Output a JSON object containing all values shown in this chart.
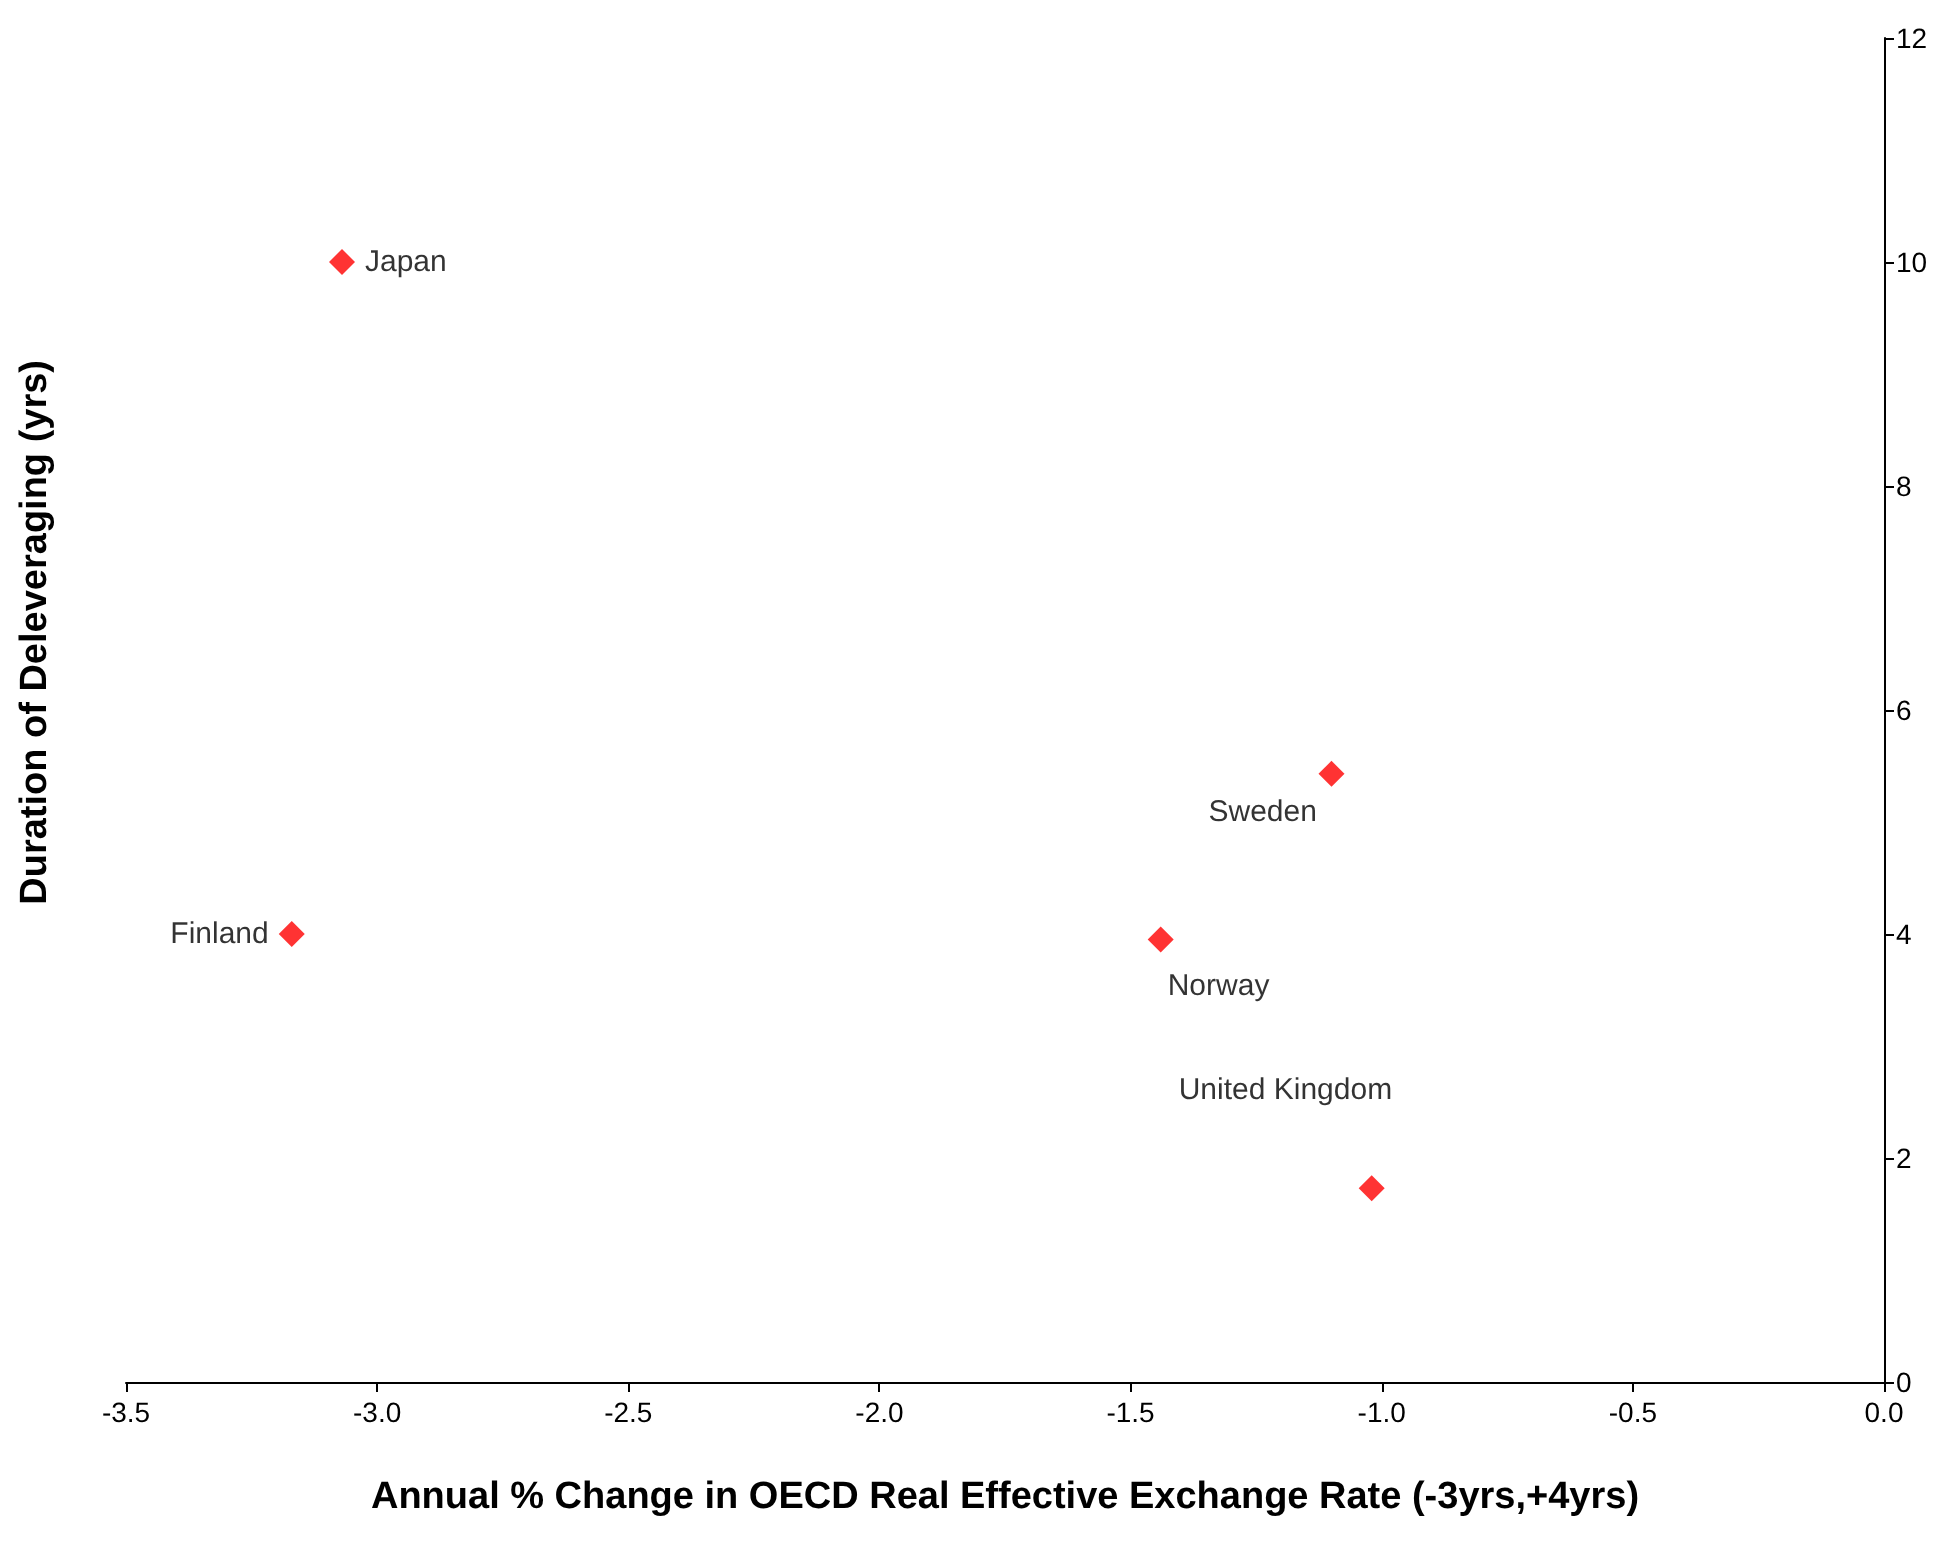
{
  "chart_data": {
    "type": "scatter",
    "xlabel": "Annual % Change in OECD Real Effective Exchange Rate (-3yrs,+4yrs)",
    "ylabel": "Duration of Deleveraging (yrs)",
    "series": [
      {
        "name": "Japan",
        "color": "#ff0000",
        "x": [
          -3.07
        ],
        "values": [
          10.0
        ]
      },
      {
        "name": "Finland",
        "color": "#ff0000",
        "x": [
          -3.17
        ],
        "values": [
          4.0
        ]
      },
      {
        "name": "Norway",
        "color": "#ff0000",
        "x": [
          -1.44
        ],
        "values": [
          3.95
        ]
      },
      {
        "name": "Sweden",
        "color": "#ff0000",
        "x": [
          -1.1
        ],
        "values": [
          5.43
        ]
      },
      {
        "name": "United Kingdom",
        "color": "#ff0000",
        "x": [
          -1.02
        ],
        "values": [
          1.73
        ]
      }
    ],
    "xlim": [
      -3.5,
      0
    ],
    "xticks": [
      -3.5,
      {
        "value": -3,
        "label": "-3.0"
      },
      -2.5,
      {
        "value": -2,
        "label": "-2.0"
      },
      -1.5,
      {
        "value": -1,
        "label": "-1.0"
      },
      -0.5,
      {
        "value": 0,
        "label": "0.0"
      }
    ],
    "ylim": [
      0,
      12
    ],
    "yticks": [
      0,
      2,
      4,
      6,
      8,
      10,
      12
    ],
    "marker": "diamond",
    "grid": false,
    "legend": false
  }
}
